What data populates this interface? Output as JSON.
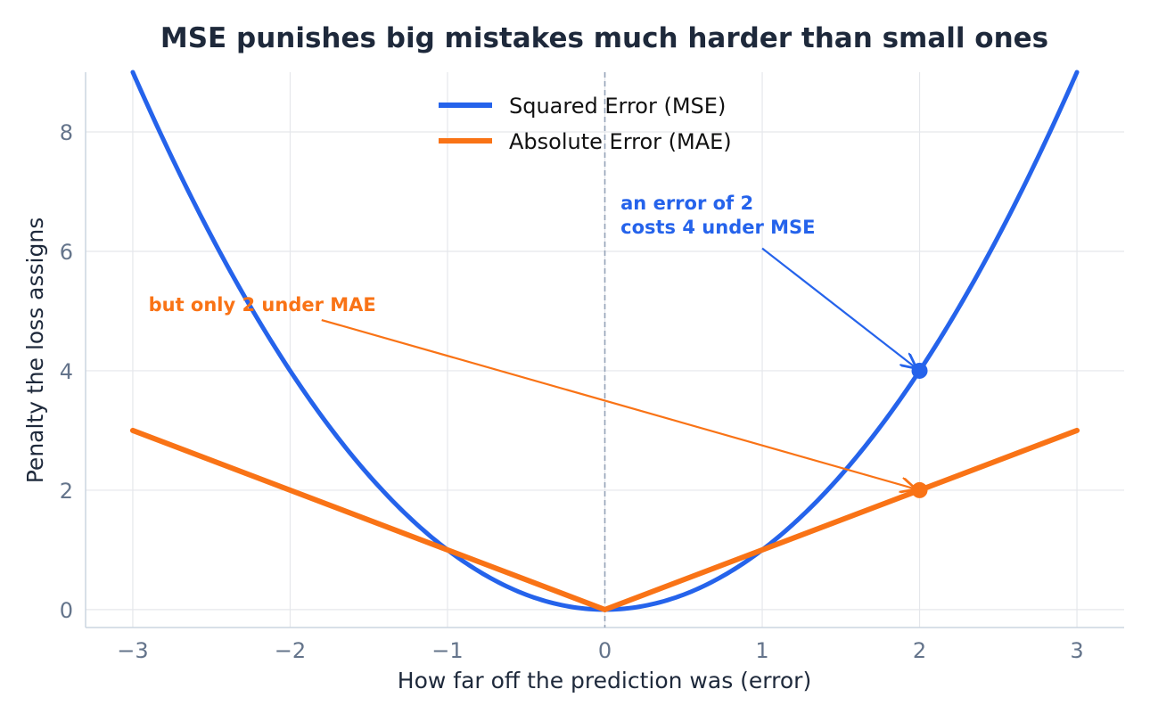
{
  "colors": {
    "mse": "#2563eb",
    "mae": "#f97316",
    "grid": "#e5e7eb",
    "zero_line": "#94a3b8",
    "axis": "#cbd5e1"
  },
  "chart_data": {
    "type": "line",
    "title": "MSE punishes big mistakes much harder than small ones",
    "xlabel": "How far off the prediction was  (error)",
    "ylabel": "Penalty the loss assigns",
    "xlim": [
      -3.3,
      3.3
    ],
    "ylim": [
      -0.3,
      9.0
    ],
    "xticks": [
      -3,
      -2,
      -1,
      0,
      1,
      2,
      3
    ],
    "xtick_labels": [
      "−3",
      "−2",
      "−1",
      "0",
      "1",
      "2",
      "3"
    ],
    "yticks": [
      0,
      2,
      4,
      6,
      8
    ],
    "ytick_labels": [
      "0",
      "2",
      "4",
      "6",
      "8"
    ],
    "grid": true,
    "legend_position": "top-center",
    "vertical_reference_line": {
      "x": 0,
      "style": "dashed"
    },
    "series": [
      {
        "name": "Squared Error  (MSE)",
        "function": "x^2",
        "x": [
          -3,
          -2.5,
          -2,
          -1.5,
          -1,
          -0.5,
          0,
          0.5,
          1,
          1.5,
          2,
          2.5,
          3
        ],
        "y": [
          9,
          6.25,
          4,
          2.25,
          1,
          0.25,
          0,
          0.25,
          1,
          2.25,
          4,
          6.25,
          9
        ]
      },
      {
        "name": "Absolute Error  (MAE)",
        "function": "|x|",
        "x": [
          -3,
          -2,
          -1,
          0,
          1,
          2,
          3
        ],
        "y": [
          3,
          2,
          1,
          0,
          1,
          2,
          3
        ]
      }
    ],
    "highlight_points": [
      {
        "series": "mse",
        "x": 2,
        "y": 4
      },
      {
        "series": "mae",
        "x": 2,
        "y": 2
      }
    ],
    "annotations": [
      {
        "series": "mse",
        "lines": [
          "an error of 2",
          "costs 4 under MSE"
        ],
        "text_at": [
          0.1,
          6.7
        ],
        "tail_at": [
          1.0,
          6.05
        ],
        "points_to": [
          2,
          4
        ]
      },
      {
        "series": "mae",
        "lines": [
          "but only 2 under MAE"
        ],
        "text_at": [
          -2.9,
          5.0
        ],
        "tail_at": [
          -1.8,
          4.85
        ],
        "points_to": [
          2,
          2
        ]
      }
    ]
  }
}
